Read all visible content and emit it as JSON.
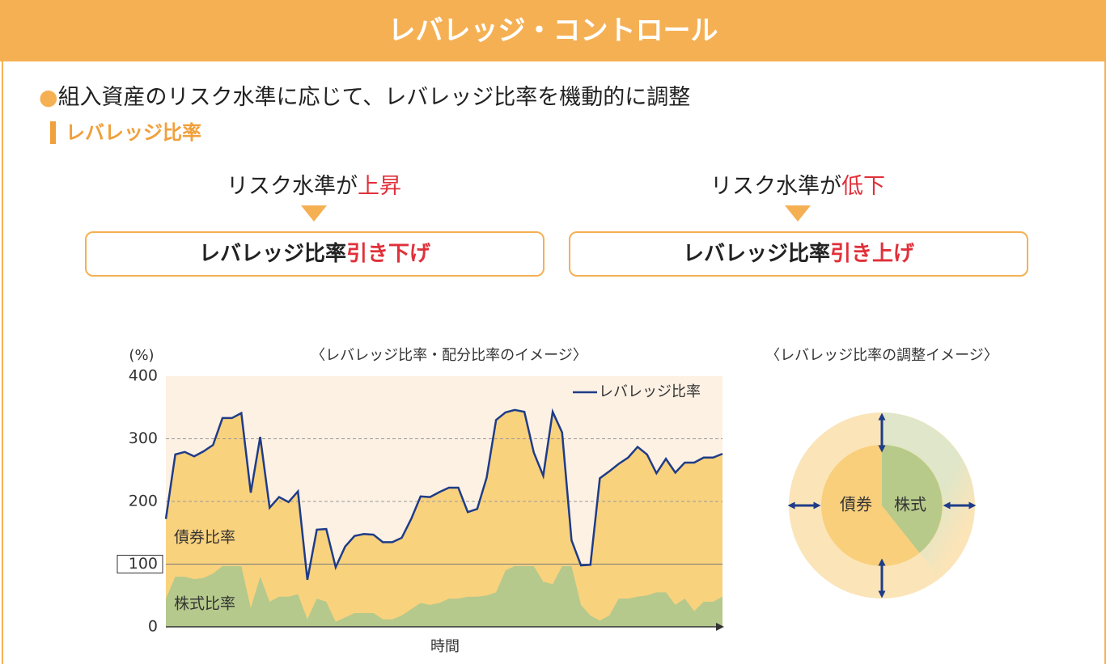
{
  "header": {
    "title": "レバレッジ・コントロール"
  },
  "bullet": "組入資産のリスク水準に応じて、レバレッジ比率を機動的に調整",
  "section": "レバレッジ比率",
  "rules": [
    {
      "cond": "リスク水準が",
      "change": "上昇",
      "result": "レバレッジ比率",
      "action": "引き下げ"
    },
    {
      "cond": "リスク水準が",
      "change": "低下",
      "result": "レバレッジ比率",
      "action": "引き上げ"
    }
  ],
  "chart_data": {
    "type": "area",
    "title": "〈レバレッジ比率・配分比率のイメージ〉",
    "y_unit": "(%)",
    "xlabel": "時間",
    "ylim": [
      0,
      400
    ],
    "yticks": [
      0,
      100,
      200,
      300,
      400
    ],
    "grid": true,
    "series": [
      {
        "name": "レバレッジ比率",
        "color": "#1f3c88",
        "fill": "#f9d27e",
        "values": [
          172,
          275,
          279,
          272,
          280,
          290,
          333,
          333,
          341,
          214,
          303,
          190,
          207,
          199,
          216,
          75,
          155,
          156,
          95,
          128,
          145,
          148,
          147,
          135,
          135,
          142,
          172,
          208,
          207,
          215,
          222,
          222,
          183,
          188,
          238,
          330,
          342,
          346,
          343,
          278,
          241,
          343,
          310,
          138,
          98,
          99,
          237,
          248,
          260,
          270,
          287,
          275,
          245,
          268,
          246,
          262,
          262,
          270,
          270,
          276
        ]
      },
      {
        "name": "株式比率",
        "color": "#b5c98c",
        "values": [
          45,
          80,
          80,
          76,
          78,
          85,
          97,
          97,
          97,
          30,
          80,
          40,
          48,
          48,
          52,
          12,
          45,
          40,
          8,
          15,
          22,
          22,
          22,
          12,
          12,
          18,
          28,
          38,
          35,
          38,
          45,
          45,
          48,
          48,
          50,
          55,
          90,
          97,
          97,
          97,
          72,
          68,
          97,
          97,
          35,
          18,
          10,
          18,
          45,
          45,
          48,
          50,
          55,
          55,
          35,
          45,
          25,
          40,
          40,
          48
        ]
      }
    ],
    "bond_label": "債券比率",
    "stock_label": "株式比率"
  },
  "diagram": {
    "title": "〈レバレッジ比率の調整イメージ〉",
    "left": "債券",
    "right": "株式"
  }
}
